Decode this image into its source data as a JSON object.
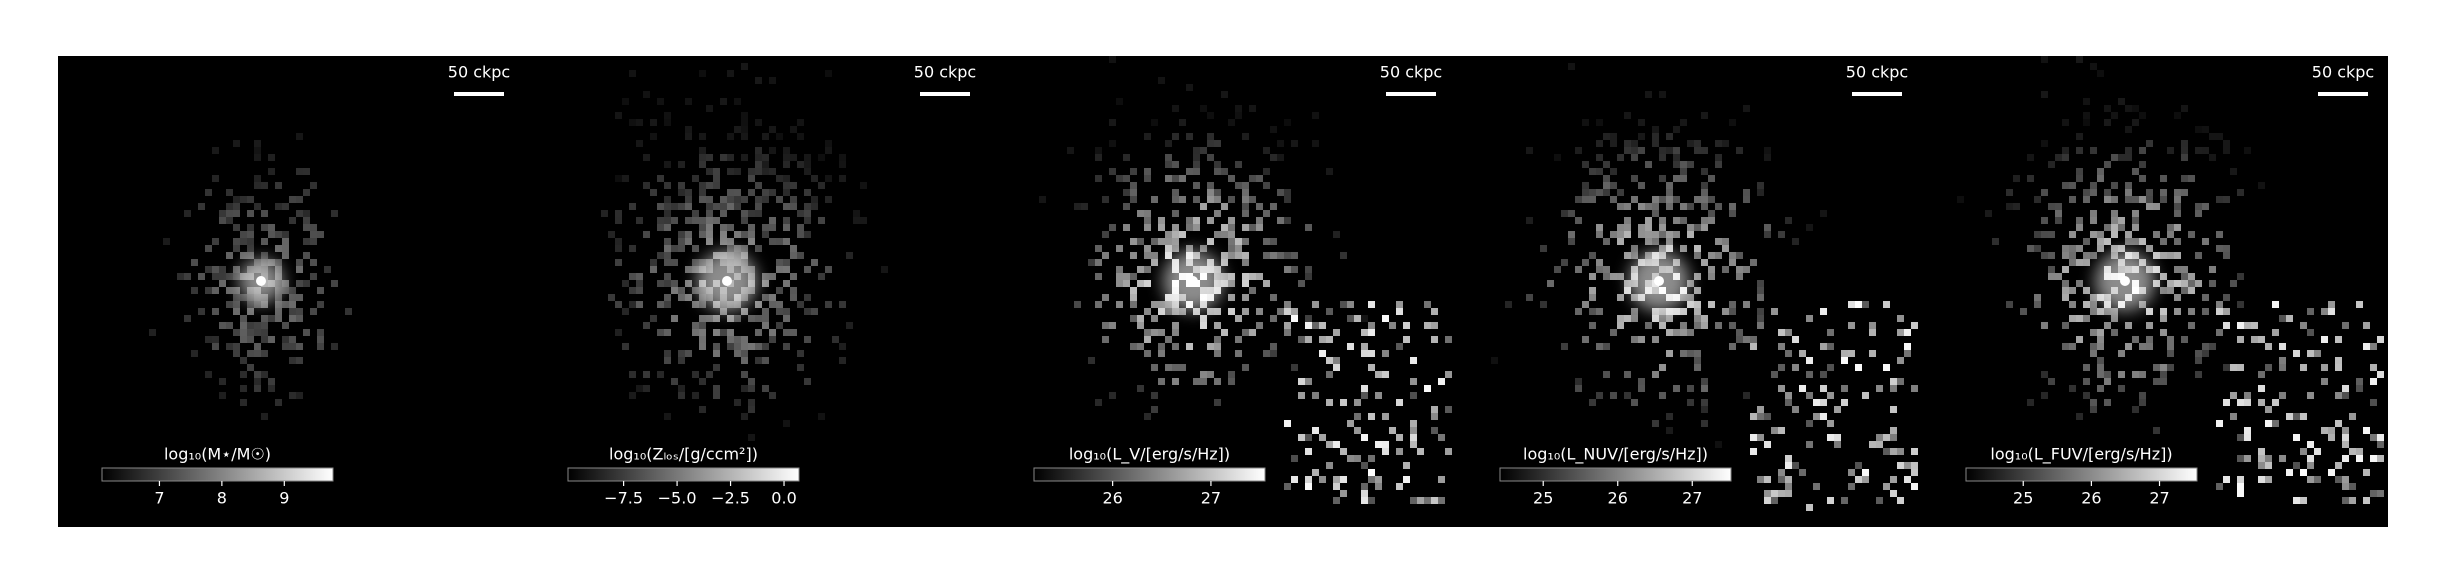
{
  "panels": [
    {
      "scale_bar": "50 ckpc",
      "colorbar": {
        "label": "log₁₀(M⋆/M☉)",
        "lim": [
          6.08,
          9.78
        ],
        "ticks": [
          7,
          8,
          9
        ]
      }
    },
    {
      "scale_bar": "50 ckpc",
      "colorbar": {
        "label": "log₁₀(Zₗₒₛ/[g/ccm²])",
        "lim": [
          -10.1,
          0.7
        ],
        "ticks": [
          {
            "value": -7.5,
            "label": "−7.5"
          },
          {
            "value": -5,
            "label": "−5.0"
          },
          {
            "value": -2.5,
            "label": "−2.5"
          },
          {
            "value": 0,
            "label": "0.0"
          }
        ]
      }
    },
    {
      "scale_bar": "50 ckpc",
      "colorbar": {
        "label": "log₁₀(L_V/[erg/s/Hz])",
        "lim": [
          25.2,
          27.55
        ],
        "ticks": [
          26,
          27
        ]
      }
    },
    {
      "scale_bar": "50 ckpc",
      "colorbar": {
        "label": "log₁₀(L_NUV/[erg/s/Hz])",
        "lim": [
          24.42,
          27.52
        ],
        "ticks": [
          25,
          26,
          27
        ]
      }
    },
    {
      "scale_bar": "50 ckpc",
      "colorbar": {
        "label": "log₁₀(L_FUV/[erg/s/Hz])",
        "lim": [
          24.16,
          27.55
        ],
        "ticks": [
          25,
          26,
          27
        ]
      }
    }
  ]
}
